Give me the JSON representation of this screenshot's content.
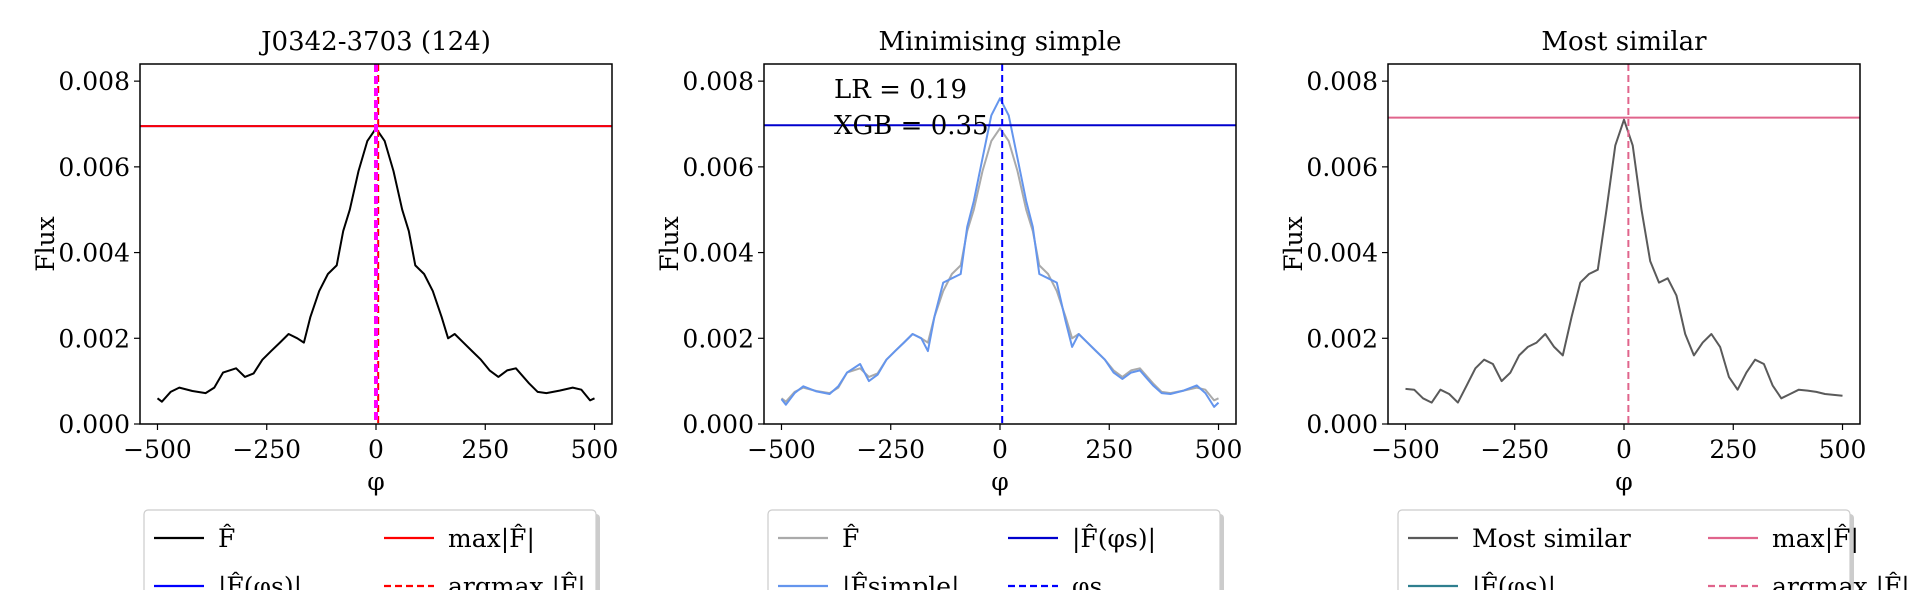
{
  "chart_data": [
    {
      "type": "line",
      "title": "J0342-3703 (124)",
      "xlabel": "φ",
      "ylabel": "Flux",
      "xlim": [
        -540,
        540
      ],
      "ylim": [
        0,
        0.0084
      ],
      "xticks": [
        -500,
        -250,
        0,
        250,
        500
      ],
      "xtick_labels": [
        "−500",
        "−250",
        "0",
        "250",
        "500"
      ],
      "yticks": [
        0,
        0.002,
        0.004,
        0.006,
        0.008
      ],
      "ytick_labels": [
        "0.000",
        "0.002",
        "0.004",
        "0.006",
        "0.008"
      ],
      "grid": false,
      "legend_position": "below",
      "series": [
        {
          "name": "F̂",
          "style": "solid",
          "color": "#000000",
          "x": [
            -500,
            -490,
            -470,
            -450,
            -420,
            -390,
            -370,
            -350,
            -320,
            -300,
            -280,
            -260,
            -240,
            -220,
            -200,
            -180,
            -165,
            -150,
            -130,
            -110,
            -90,
            -75,
            -60,
            -40,
            -20,
            0,
            20,
            40,
            60,
            75,
            90,
            110,
            130,
            150,
            165,
            180,
            200,
            220,
            240,
            260,
            280,
            300,
            320,
            350,
            370,
            390,
            420,
            450,
            470,
            490,
            500
          ],
          "y": [
            0.0006,
            0.00052,
            0.00075,
            0.00085,
            0.00077,
            0.00072,
            0.00085,
            0.0012,
            0.0013,
            0.0011,
            0.00118,
            0.0015,
            0.0017,
            0.0019,
            0.0021,
            0.002,
            0.0019,
            0.0025,
            0.0031,
            0.0035,
            0.0037,
            0.0045,
            0.005,
            0.0059,
            0.0066,
            0.0069,
            0.0066,
            0.0059,
            0.005,
            0.0045,
            0.0037,
            0.0035,
            0.0031,
            0.0025,
            0.002,
            0.0021,
            0.0019,
            0.0017,
            0.0015,
            0.00125,
            0.0011,
            0.00125,
            0.0013,
            0.00095,
            0.00075,
            0.00072,
            0.00078,
            0.00085,
            0.0008,
            0.00055,
            0.0006
          ]
        },
        {
          "name": "|F̂(φs)|",
          "hline": 0.00695,
          "style": "solid",
          "color": "#0000ff"
        },
        {
          "name": "max|F̂|",
          "hline": 0.00695,
          "style": "solid",
          "color": "#ff0000"
        },
        {
          "name": "argmax |F̂|",
          "vline": 5,
          "style": "dashed",
          "color": "#ff0000"
        },
        {
          "name": "",
          "vline": 0,
          "style": "dashed-thick",
          "color": "#ff00ff"
        }
      ],
      "legend": [
        {
          "label": "F̂",
          "style": "solid",
          "color": "#000000"
        },
        {
          "label": "max|F̂|",
          "style": "solid",
          "color": "#ff0000"
        },
        {
          "label": "|F̂(φs)|",
          "style": "solid",
          "color": "#0000ff"
        },
        {
          "label": "argmax |F̂|",
          "style": "dashed",
          "color": "#ff0000"
        }
      ]
    },
    {
      "type": "line",
      "title": "Minimising simple",
      "xlabel": "φ",
      "ylabel": "Flux",
      "xlim": [
        -540,
        540
      ],
      "ylim": [
        0,
        0.0084
      ],
      "xticks": [
        -500,
        -250,
        0,
        250,
        500
      ],
      "xtick_labels": [
        "−500",
        "−250",
        "0",
        "250",
        "500"
      ],
      "yticks": [
        0,
        0.002,
        0.004,
        0.006,
        0.008
      ],
      "ytick_labels": [
        "0.000",
        "0.002",
        "0.004",
        "0.006",
        "0.008"
      ],
      "grid": false,
      "legend_position": "below",
      "annotations": [
        "LR = 0.19",
        "XGB = 0.35"
      ],
      "series": [
        {
          "name": "F̂",
          "style": "solid",
          "color": "#aaaaaa",
          "x": [
            -500,
            -490,
            -470,
            -450,
            -420,
            -390,
            -370,
            -350,
            -320,
            -300,
            -280,
            -260,
            -240,
            -220,
            -200,
            -180,
            -165,
            -150,
            -130,
            -110,
            -90,
            -75,
            -60,
            -40,
            -20,
            0,
            20,
            40,
            60,
            75,
            90,
            110,
            130,
            150,
            165,
            180,
            200,
            220,
            240,
            260,
            280,
            300,
            320,
            350,
            370,
            390,
            420,
            450,
            470,
            490,
            500
          ],
          "y": [
            0.0006,
            0.00052,
            0.00075,
            0.00085,
            0.00077,
            0.00072,
            0.00085,
            0.0012,
            0.0013,
            0.0011,
            0.00118,
            0.0015,
            0.0017,
            0.0019,
            0.0021,
            0.002,
            0.0019,
            0.0025,
            0.0031,
            0.0035,
            0.0037,
            0.0045,
            0.005,
            0.0059,
            0.0066,
            0.0069,
            0.0066,
            0.0059,
            0.005,
            0.0045,
            0.0037,
            0.0035,
            0.0031,
            0.0025,
            0.002,
            0.0021,
            0.0019,
            0.0017,
            0.0015,
            0.00125,
            0.0011,
            0.00125,
            0.0013,
            0.00095,
            0.00075,
            0.00072,
            0.00078,
            0.00085,
            0.0008,
            0.00055,
            0.0006
          ]
        },
        {
          "name": "|F̂simple|",
          "style": "solid",
          "color": "#6495ed",
          "x": [
            -500,
            -490,
            -470,
            -450,
            -420,
            -390,
            -370,
            -350,
            -320,
            -300,
            -280,
            -260,
            -240,
            -220,
            -200,
            -180,
            -165,
            -150,
            -130,
            -110,
            -90,
            -75,
            -60,
            -40,
            -20,
            0,
            20,
            40,
            60,
            75,
            90,
            110,
            130,
            150,
            165,
            180,
            200,
            220,
            240,
            260,
            280,
            300,
            320,
            350,
            370,
            390,
            420,
            450,
            470,
            490,
            500
          ],
          "y": [
            0.00058,
            0.00045,
            0.00072,
            0.00088,
            0.00076,
            0.0007,
            0.00088,
            0.0012,
            0.0014,
            0.001,
            0.00115,
            0.0015,
            0.0017,
            0.0019,
            0.0021,
            0.002,
            0.0017,
            0.0025,
            0.0033,
            0.0034,
            0.0035,
            0.0046,
            0.0052,
            0.0062,
            0.0072,
            0.0076,
            0.0072,
            0.0062,
            0.0052,
            0.0046,
            0.0035,
            0.0034,
            0.0033,
            0.0024,
            0.0018,
            0.0021,
            0.0019,
            0.0017,
            0.0015,
            0.0012,
            0.00105,
            0.0012,
            0.00125,
            0.0009,
            0.00072,
            0.0007,
            0.00078,
            0.0009,
            0.00072,
            0.0004,
            0.0005
          ]
        },
        {
          "name": "|F̂(φs)|",
          "hline": 0.00697,
          "style": "solid",
          "color": "#0000cd"
        },
        {
          "name": "φs",
          "vline": 5,
          "style": "dashed",
          "color": "#0000ff"
        }
      ],
      "legend": [
        {
          "label": "F̂",
          "style": "solid",
          "color": "#aaaaaa"
        },
        {
          "label": "|F̂(φs)|",
          "style": "solid",
          "color": "#0000cd"
        },
        {
          "label": "|F̂simple|",
          "style": "solid",
          "color": "#6495ed"
        },
        {
          "label": "φs",
          "style": "dashed",
          "color": "#0000ff"
        }
      ]
    },
    {
      "type": "line",
      "title": "Most similar",
      "xlabel": "φ",
      "ylabel": "Flux",
      "xlim": [
        -540,
        540
      ],
      "ylim": [
        0,
        0.0084
      ],
      "xticks": [
        -500,
        -250,
        0,
        250,
        500
      ],
      "xtick_labels": [
        "−500",
        "−250",
        "0",
        "250",
        "500"
      ],
      "yticks": [
        0,
        0.002,
        0.004,
        0.006,
        0.008
      ],
      "ytick_labels": [
        "0.000",
        "0.002",
        "0.004",
        "0.006",
        "0.008"
      ],
      "grid": false,
      "legend_position": "below",
      "series": [
        {
          "name": "Most similar",
          "style": "solid",
          "color": "#5a5a5a",
          "x": [
            -500,
            -480,
            -460,
            -440,
            -420,
            -400,
            -380,
            -360,
            -340,
            -320,
            -300,
            -280,
            -260,
            -240,
            -220,
            -200,
            -180,
            -160,
            -140,
            -120,
            -100,
            -80,
            -60,
            -40,
            -20,
            0,
            20,
            40,
            60,
            80,
            100,
            120,
            140,
            160,
            180,
            200,
            220,
            240,
            260,
            280,
            300,
            320,
            340,
            360,
            380,
            400,
            420,
            440,
            460,
            480,
            500
          ],
          "y": [
            0.00082,
            0.0008,
            0.0006,
            0.0005,
            0.0008,
            0.0007,
            0.0005,
            0.0009,
            0.0013,
            0.0015,
            0.0014,
            0.001,
            0.0012,
            0.0016,
            0.0018,
            0.0019,
            0.0021,
            0.0018,
            0.0016,
            0.0025,
            0.0033,
            0.0035,
            0.0036,
            0.005,
            0.0065,
            0.0071,
            0.0065,
            0.005,
            0.0038,
            0.0033,
            0.0034,
            0.003,
            0.0021,
            0.0016,
            0.0019,
            0.0021,
            0.0018,
            0.0011,
            0.0008,
            0.0012,
            0.0015,
            0.0014,
            0.0009,
            0.0006,
            0.0007,
            0.0008,
            0.00078,
            0.00075,
            0.0007,
            0.00068,
            0.00066
          ]
        },
        {
          "name": "|F̂(φs)|",
          "style": "solid",
          "color": "#2f7f8f"
        },
        {
          "name": "max|F̂|",
          "hline": 0.00715,
          "style": "solid",
          "color": "#e0648c"
        },
        {
          "name": "argmax |F̂|",
          "vline": 10,
          "style": "dashed",
          "color": "#e0648c"
        }
      ],
      "legend": [
        {
          "label": "Most similar",
          "style": "solid",
          "color": "#5a5a5a"
        },
        {
          "label": "max|F̂|",
          "style": "solid",
          "color": "#e0648c"
        },
        {
          "label": "|F̂(φs)|",
          "style": "solid",
          "color": "#2f7f8f"
        },
        {
          "label": "argmax |F̂|",
          "style": "dashed",
          "color": "#e0648c"
        }
      ]
    }
  ]
}
